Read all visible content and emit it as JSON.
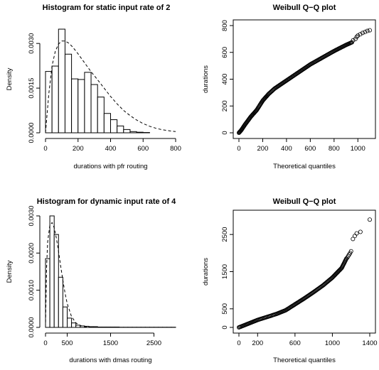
{
  "chart_data": [
    {
      "type": "bar",
      "kind": "histogram",
      "title": "Histogram for static input rate of 2",
      "xlabel": "durations with pfr routing",
      "ylabel": "Density",
      "xlim": [
        0,
        800
      ],
      "ylim": [
        0,
        0.0036
      ],
      "xticks": [
        0,
        200,
        400,
        600,
        800
      ],
      "yticks": [
        0.0,
        0.0015,
        0.003
      ],
      "ytick_labels": [
        "0.0000",
        "0.0015",
        "0.0030"
      ],
      "bin_edges": [
        0,
        40,
        80,
        120,
        160,
        200,
        240,
        280,
        320,
        360,
        400,
        440,
        480,
        520,
        560,
        600,
        640,
        680,
        720,
        760,
        800
      ],
      "density": [
        0.00206,
        0.00224,
        0.00348,
        0.00264,
        0.00181,
        0.00179,
        0.00203,
        0.00162,
        0.0012,
        0.00065,
        0.00044,
        0.00023,
        0.00011,
        4e-05,
        2e-05,
        1e-05,
        0,
        0,
        0,
        0
      ],
      "overlay": {
        "style": "dashed",
        "name": "Weibull density",
        "x": [
          0,
          20,
          40,
          60,
          80,
          100,
          120,
          140,
          160,
          180,
          200,
          240,
          280,
          320,
          360,
          400,
          440,
          480,
          520,
          560,
          600,
          640,
          680,
          720,
          760,
          800
        ],
        "y": [
          0,
          0.0013,
          0.00225,
          0.00273,
          0.00298,
          0.00308,
          0.00308,
          0.00302,
          0.00292,
          0.00279,
          0.00265,
          0.00235,
          0.00205,
          0.00178,
          0.0015,
          0.00122,
          0.00097,
          0.00075,
          0.00058,
          0.00043,
          0.00031,
          0.00022,
          0.00015,
          0.0001,
          7e-05,
          4e-05
        ]
      }
    },
    {
      "type": "scatter",
      "title": "Weibull Q−Q plot",
      "xlabel": "Theoretical quantiles",
      "ylabel": "durations",
      "xlim": [
        0,
        1100
      ],
      "ylim": [
        0,
        800
      ],
      "xticks": [
        0,
        200,
        400,
        600,
        800,
        1000
      ],
      "yticks": [
        0,
        200,
        400,
        600,
        800
      ],
      "marker": "open-circle",
      "curve": {
        "x": [
          0,
          20,
          50,
          100,
          150,
          200,
          250,
          300,
          400,
          500,
          600,
          700,
          800,
          900,
          950
        ],
        "y": [
          0,
          20,
          60,
          120,
          170,
          240,
          290,
          330,
          390,
          450,
          510,
          560,
          610,
          655,
          675
        ]
      },
      "points": [
        [
          960,
          690
        ],
        [
          980,
          700
        ],
        [
          990,
          715
        ],
        [
          1000,
          725
        ],
        [
          1020,
          735
        ],
        [
          1040,
          745
        ],
        [
          1060,
          752
        ],
        [
          1080,
          760
        ],
        [
          1100,
          765
        ]
      ]
    },
    {
      "type": "bar",
      "kind": "histogram",
      "title": "Histogram for dynamic input rate of 4",
      "xlabel": "durations with dmas routing",
      "ylabel": "Density",
      "xlim": [
        0,
        3000
      ],
      "ylim": [
        0,
        0.003
      ],
      "xticks": [
        500,
        1500,
        2500
      ],
      "xtick_origin_label": "0",
      "yticks": [
        0.0,
        0.001,
        0.002,
        0.003
      ],
      "ytick_labels": [
        "0.0000",
        "0.0010",
        "0.0020",
        "0.0030"
      ],
      "bin_edges": [
        0,
        100,
        200,
        300,
        400,
        500,
        600,
        700,
        800,
        900,
        1000,
        1100,
        1200,
        1300,
        1400,
        1500,
        1600,
        1700,
        1800,
        1900,
        2000,
        2100,
        2200,
        2300,
        2400,
        2500,
        2600,
        2700,
        2800,
        2900,
        3000
      ],
      "density": [
        0.00185,
        0.003,
        0.0025,
        0.00135,
        0.00055,
        0.00025,
        0.00012,
        6e-05,
        4e-05,
        3e-05,
        2e-05,
        2e-05,
        1e-05,
        1e-05,
        1e-05,
        1e-05,
        1e-05,
        5e-06,
        5e-06,
        5e-06,
        5e-06,
        5e-06,
        5e-06,
        5e-06,
        5e-06,
        5e-06,
        5e-06,
        5e-06,
        5e-06,
        5e-06
      ],
      "overlay": {
        "style": "dashed",
        "name": "Weibull density",
        "x": [
          0,
          25,
          50,
          100,
          150,
          200,
          250,
          300,
          350,
          400,
          450,
          500,
          600,
          700,
          800,
          900,
          1000,
          1200,
          1500,
          2000,
          2500,
          3000
        ],
        "y": [
          0,
          0.0016,
          0.0023,
          0.00275,
          0.00282,
          0.00268,
          0.0024,
          0.00205,
          0.00165,
          0.00127,
          0.00092,
          0.00064,
          0.00029,
          0.00012,
          5e-05,
          2e-05,
          1e-05,
          0,
          0,
          0,
          0,
          0
        ]
      }
    },
    {
      "type": "scatter",
      "title": "Weibull Q−Q plot",
      "xlabel": "Theoretical quantiles",
      "ylabel": "durations",
      "xlim": [
        0,
        1400
      ],
      "ylim": [
        0,
        3000
      ],
      "xticks": [
        0,
        200,
        600,
        1000,
        1400
      ],
      "yticks": [
        0,
        500,
        1500,
        2500
      ],
      "marker": "open-circle",
      "curve": {
        "x": [
          0,
          100,
          200,
          300,
          400,
          500,
          600,
          700,
          800,
          900,
          1000,
          1100,
          1150
        ],
        "y": [
          0,
          100,
          200,
          280,
          360,
          460,
          620,
          780,
          950,
          1130,
          1340,
          1600,
          1850
        ]
      },
      "points": [
        [
          1160,
          1880
        ],
        [
          1170,
          1920
        ],
        [
          1180,
          1960
        ],
        [
          1190,
          2000
        ],
        [
          1200,
          2050
        ],
        [
          1220,
          2380
        ],
        [
          1240,
          2460
        ],
        [
          1260,
          2530
        ],
        [
          1300,
          2570
        ],
        [
          1400,
          2900
        ]
      ]
    }
  ]
}
